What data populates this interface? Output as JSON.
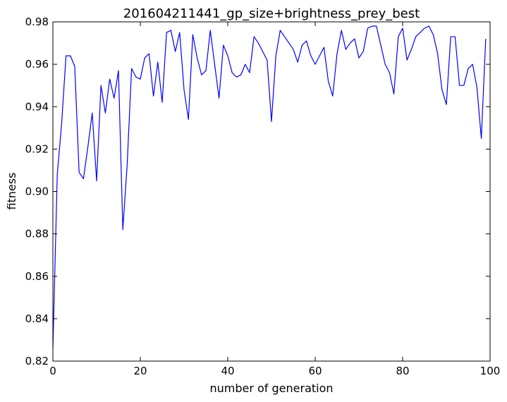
{
  "chart_data": {
    "type": "line",
    "title": "201604211441_gp_size+brightness_prey_best",
    "xlabel": "number of generation",
    "ylabel": "fitness",
    "xlim": [
      0,
      100
    ],
    "ylim": [
      0.82,
      0.98
    ],
    "xticks": [
      0,
      20,
      40,
      60,
      80,
      100
    ],
    "yticks": [
      0.82,
      0.84,
      0.86,
      0.88,
      0.9,
      0.92,
      0.94,
      0.96,
      0.98
    ],
    "xtick_labels": [
      "0",
      "20",
      "40",
      "60",
      "80",
      "100"
    ],
    "ytick_labels": [
      "0.82",
      "0.84",
      "0.86",
      "0.88",
      "0.90",
      "0.92",
      "0.94",
      "0.96",
      "0.98"
    ],
    "grid": false,
    "legend": false,
    "series": [
      {
        "color": "#0000ff",
        "x": [
          0,
          1,
          2,
          3,
          4,
          5,
          6,
          7,
          8,
          9,
          10,
          11,
          12,
          13,
          14,
          15,
          16,
          17,
          18,
          19,
          20,
          21,
          22,
          23,
          24,
          25,
          26,
          27,
          28,
          29,
          30,
          31,
          32,
          33,
          34,
          35,
          36,
          37,
          38,
          39,
          40,
          41,
          42,
          43,
          44,
          45,
          46,
          47,
          48,
          49,
          50,
          51,
          52,
          53,
          54,
          55,
          56,
          57,
          58,
          59,
          60,
          61,
          62,
          63,
          64,
          65,
          66,
          67,
          68,
          69,
          70,
          71,
          72,
          73,
          74,
          75,
          76,
          77,
          78,
          79,
          80,
          81,
          82,
          83,
          84,
          85,
          86,
          87,
          88,
          89,
          90,
          91,
          92,
          93,
          94,
          95,
          96,
          97,
          98,
          99
        ],
        "values": [
          0.826,
          0.908,
          0.932,
          0.964,
          0.964,
          0.959,
          0.909,
          0.906,
          0.921,
          0.937,
          0.905,
          0.95,
          0.937,
          0.953,
          0.944,
          0.957,
          0.882,
          0.913,
          0.958,
          0.954,
          0.953,
          0.963,
          0.965,
          0.945,
          0.961,
          0.942,
          0.975,
          0.976,
          0.966,
          0.975,
          0.948,
          0.934,
          0.974,
          0.963,
          0.955,
          0.957,
          0.976,
          0.96,
          0.944,
          0.969,
          0.964,
          0.956,
          0.954,
          0.955,
          0.96,
          0.956,
          0.973,
          0.97,
          0.966,
          0.962,
          0.933,
          0.964,
          0.976,
          0.973,
          0.97,
          0.967,
          0.961,
          0.969,
          0.971,
          0.964,
          0.96,
          0.964,
          0.968,
          0.952,
          0.945,
          0.965,
          0.976,
          0.967,
          0.97,
          0.972,
          0.963,
          0.966,
          0.977,
          0.978,
          0.978,
          0.969,
          0.96,
          0.956,
          0.946,
          0.973,
          0.977,
          0.962,
          0.967,
          0.973,
          0.975,
          0.977,
          0.978,
          0.974,
          0.965,
          0.948,
          0.941,
          0.973,
          0.973,
          0.95,
          0.95,
          0.958,
          0.96,
          0.949,
          0.925,
          0.972
        ]
      }
    ]
  }
}
